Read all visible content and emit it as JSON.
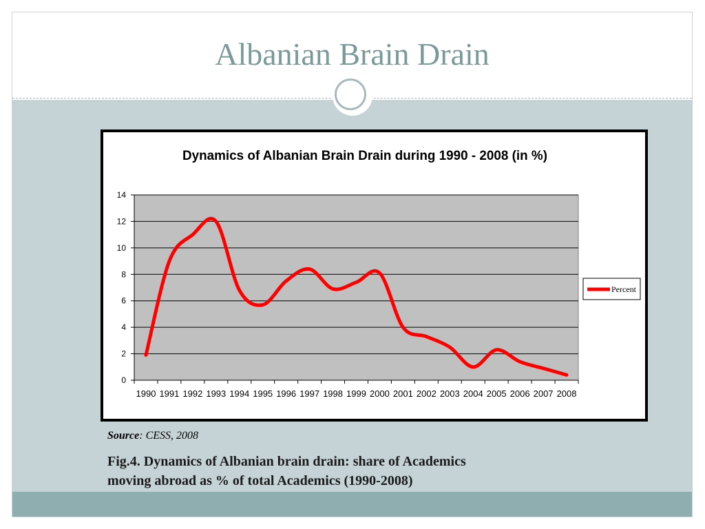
{
  "slide": {
    "title": "Albanian Brain Drain",
    "source_label": "Source",
    "source_text": ": CESS, 2008",
    "caption_line1": "Fig.4. Dynamics of Albanian brain drain: share of Academics",
    "caption_line2": "moving abroad as % of total Academics (1990-2008)"
  },
  "colors": {
    "title": "#7a9a99",
    "background": "#c5d2d6",
    "band": "#8eaeb0",
    "plot_area": "#c0c0c0",
    "series": "#ff0000"
  },
  "chart_data": {
    "type": "line",
    "title": "Dynamics of Albanian Brain Drain during 1990 - 2008 (in %)",
    "xlabel": "",
    "ylabel": "",
    "categories": [
      "1990",
      "1991",
      "1992",
      "1993",
      "1994",
      "1995",
      "1996",
      "1997",
      "1998",
      "1999",
      "2000",
      "2001",
      "2002",
      "2003",
      "2004",
      "2005",
      "2006",
      "2007",
      "2008"
    ],
    "series": [
      {
        "name": "Percent",
        "values": [
          1.9,
          9.0,
          11.0,
          12.0,
          6.8,
          5.7,
          7.5,
          8.4,
          6.9,
          7.4,
          8.1,
          4.0,
          3.3,
          2.5,
          1.0,
          2.3,
          1.4,
          0.9,
          0.4
        ],
        "color": "#ff0000"
      }
    ],
    "ylim": [
      0,
      14
    ],
    "yticks": [
      0,
      2,
      4,
      6,
      8,
      10,
      12,
      14
    ],
    "grid": true,
    "smooth": true,
    "legend": "right"
  }
}
